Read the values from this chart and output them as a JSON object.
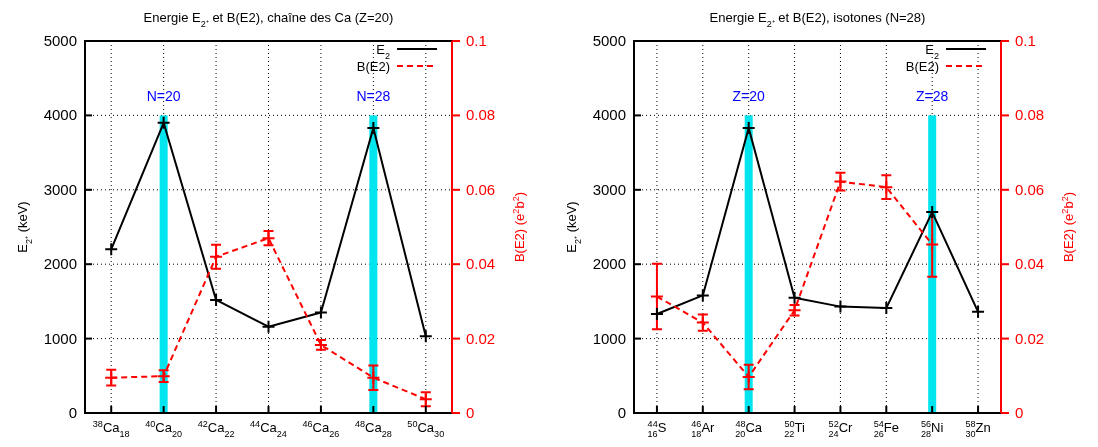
{
  "chart_data": [
    {
      "type": "line",
      "title": "Energie E$_{2⁺}$ et B(E2), chaîne des Ca (Z=20)",
      "ylabel": "E$_{2⁺}$ (keV)",
      "y2label": "B(E2) (e$^{2}$b$^{2}$)",
      "categories": [
        "$^{38}$Ca$_{18}$",
        "$^{40}$Ca$_{20}$",
        "$^{42}$Ca$_{22}$",
        "$^{44}$Ca$_{24}$",
        "$^{46}$Ca$_{26}$",
        "$^{48}$Ca$_{28}$",
        "$^{50}$Ca$_{30}$"
      ],
      "ylim": [
        0,
        5000
      ],
      "yticks": [
        0,
        1000,
        2000,
        3000,
        4000,
        5000
      ],
      "y2lim": [
        0,
        0.1
      ],
      "y2ticks": [
        0,
        0.02,
        0.04,
        0.06,
        0.08,
        0.1
      ],
      "grid": true,
      "legend": "top right",
      "marker": "cross",
      "series": [
        {
          "type": "bar",
          "color": "#00e5ee",
          "values": [
            null,
            4000,
            null,
            null,
            null,
            4000,
            null
          ]
        },
        {
          "name": "E$_{2}$",
          "color": "#000000",
          "line_style": "solid",
          "values": [
            2200,
            3900,
            1520,
            1160,
            1350,
            3830,
            1030
          ]
        },
        {
          "name": "B(E2)",
          "color": "#ff0000",
          "line_style": "dashed",
          "axis": "y2",
          "values": [
            0.0095,
            0.0099,
            0.042,
            0.047,
            0.0183,
            0.0095,
            0.0037
          ],
          "errors": [
            0.0021,
            0.0016,
            0.0032,
            0.0019,
            0.0013,
            0.0033,
            0.0019
          ]
        }
      ],
      "annotations": [
        "N=20",
        "N=28"
      ]
    },
    {
      "type": "line",
      "title": "Energie  E$_{2⁺}$ et B(E2), isotones (N=28)",
      "ylabel": "E$_{2⁺}$ (keV)",
      "y2label": "B(E2) (e$^{2}$b$^{2}$)",
      "categories": [
        "$^{44}$$_{16}$S",
        "$^{46}$$_{18}$Ar",
        "$^{48}$$_{20}$Ca",
        "$^{50}$$_{22}$Ti",
        "$^{52}$$_{24}$Cr",
        "$^{54}$$_{26}$Fe",
        "$^{56}$$_{28}$Ni",
        "$^{58}$$_{30}$Zn"
      ],
      "ylim": [
        0,
        5000
      ],
      "yticks": [
        0,
        1000,
        2000,
        3000,
        4000,
        5000
      ],
      "y2lim": [
        0,
        0.1
      ],
      "y2ticks": [
        0,
        0.02,
        0.04,
        0.06,
        0.08,
        0.1
      ],
      "grid": true,
      "legend": "top right",
      "marker": "cross",
      "series": [
        {
          "type": "bar",
          "color": "#00e5ee",
          "values": [
            null,
            null,
            4000,
            null,
            null,
            null,
            4000,
            null
          ]
        },
        {
          "name": "E$_{2}$",
          "color": "#000000",
          "line_style": "solid",
          "values": [
            1330,
            1580,
            3830,
            1550,
            1430,
            1410,
            2700,
            1360
          ]
        },
        {
          "name": "B(E2)",
          "color": "#ff0000",
          "line_style": "dashed",
          "axis": "y2",
          "values": [
            0.0313,
            0.0243,
            0.0097,
            0.0276,
            0.0622,
            0.0607,
            0.0453,
            null
          ],
          "errors": [
            0.0088,
            0.0022,
            0.0033,
            0.0014,
            0.0024,
            0.0032,
            0.0087,
            null
          ]
        }
      ],
      "annotations": [
        "Z=20",
        "Z=28"
      ]
    }
  ]
}
